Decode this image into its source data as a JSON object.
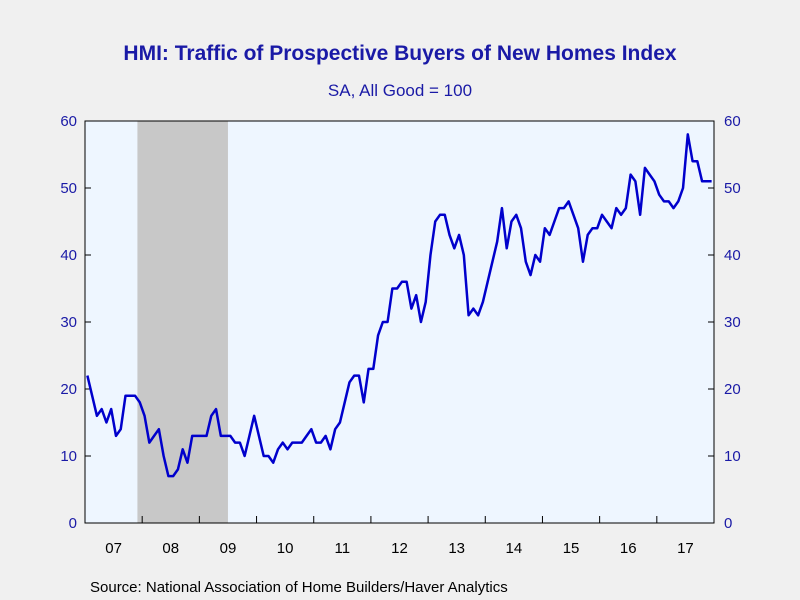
{
  "chart_data": {
    "type": "line",
    "title": "HMI: Traffic of Prospective Buyers of New Homes Index",
    "subtitle": "SA, All Good = 100",
    "source": "Source:  National Association of Home Builders/Haver Analytics",
    "x_start": "2007-01",
    "x_end": "2017-12",
    "x_tick_labels": [
      "07",
      "08",
      "09",
      "10",
      "11",
      "12",
      "13",
      "14",
      "15",
      "16",
      "17"
    ],
    "y_ticks": [
      0,
      10,
      20,
      30,
      40,
      50,
      60
    ],
    "ylim": [
      0,
      60
    ],
    "grid": false,
    "shaded_recession": {
      "start": "2007-12",
      "end": "2009-06"
    },
    "colors": {
      "line": "#0000cc",
      "plot_bg": "#eef6ff",
      "recession": "#c8c8c8",
      "text": "#1a1aa6"
    },
    "series": [
      {
        "values": [
          22,
          19,
          16,
          17,
          15,
          17,
          13,
          14,
          19,
          19,
          19,
          18,
          16,
          12,
          13,
          14,
          10,
          7,
          7,
          8,
          11,
          9,
          13,
          13,
          13,
          13,
          16,
          17,
          13,
          13,
          13,
          12,
          12,
          10,
          13,
          16,
          13,
          10,
          10,
          9,
          11,
          12,
          11,
          12,
          12,
          12,
          13,
          14,
          12,
          12,
          13,
          11,
          14,
          15,
          18,
          21,
          22,
          22,
          18,
          23,
          23,
          28,
          30,
          30,
          35,
          35,
          36,
          36,
          32,
          34,
          30,
          33,
          40,
          45,
          46,
          46,
          43,
          41,
          43,
          40,
          31,
          32,
          31,
          33,
          36,
          39,
          42,
          47,
          41,
          45,
          46,
          44,
          39,
          37,
          40,
          39,
          44,
          43,
          45,
          47,
          47,
          48,
          46,
          44,
          39,
          43,
          44,
          44,
          46,
          45,
          44,
          47,
          46,
          47,
          52,
          51,
          46,
          53,
          52,
          51,
          49,
          48,
          48,
          47,
          48,
          50,
          58,
          54,
          54,
          51,
          51,
          51
        ]
      }
    ]
  }
}
